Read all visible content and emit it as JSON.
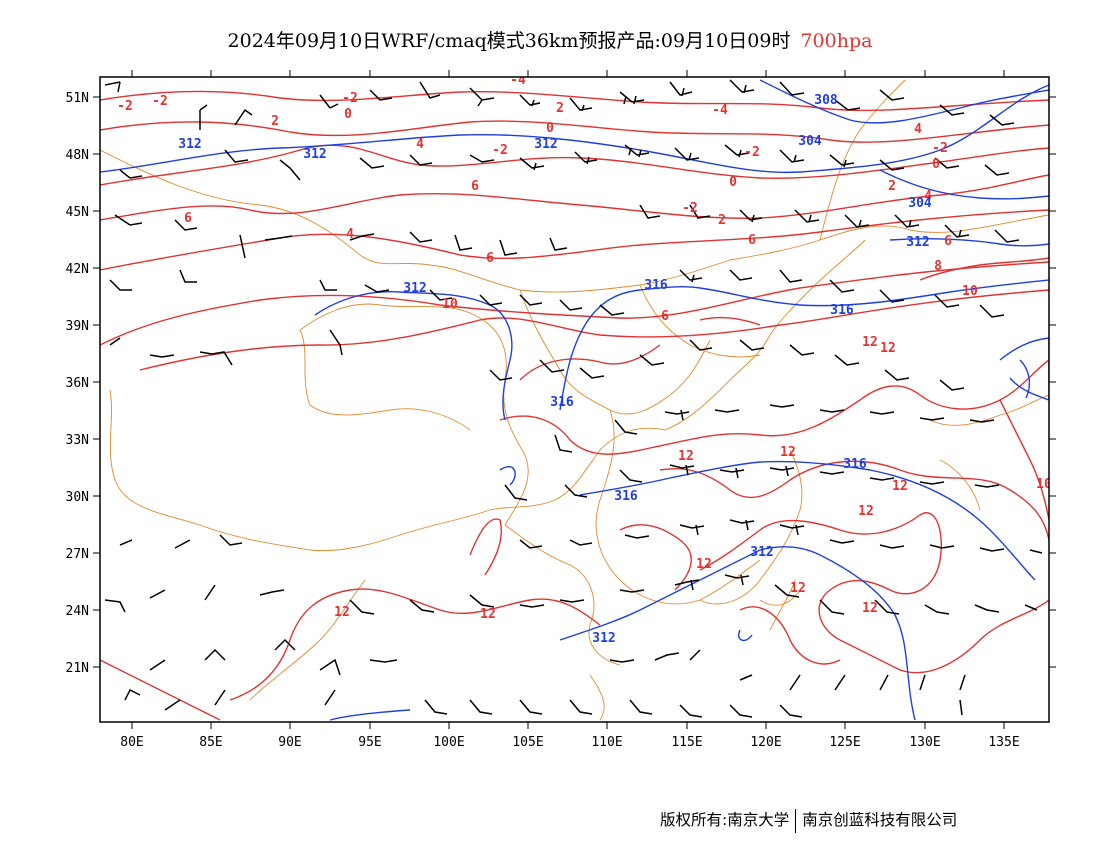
{
  "title": {
    "main": "2024年09月10日WRF/cmaq模式36km预报产品:09月10日09时",
    "level": "700hpa"
  },
  "axes": {
    "lat_labels": [
      "51N",
      "48N",
      "45N",
      "42N",
      "39N",
      "36N",
      "33N",
      "30N",
      "27N",
      "24N",
      "21N"
    ],
    "lon_labels": [
      "80E",
      "85E",
      "90E",
      "95E",
      "100E",
      "105E",
      "110E",
      "115E",
      "120E",
      "125E",
      "130E",
      "135E"
    ]
  },
  "temperature_labels": [
    "-2",
    "-2",
    "-2",
    "0",
    "-4",
    "-4",
    "2",
    "0",
    "2",
    "-2",
    "4",
    "-2",
    "-2",
    "0",
    "4",
    "6",
    "2",
    "0",
    "4",
    "6",
    "-2",
    "2",
    "4",
    "6",
    "6",
    "6",
    "10",
    "6",
    "8",
    "10",
    "12",
    "12",
    "12",
    "12",
    "12",
    "12",
    "12",
    "12",
    "12",
    "12",
    "12",
    "10"
  ],
  "height_labels": [
    "312",
    "312",
    "308",
    "304",
    "312",
    "304",
    "312",
    "312",
    "316",
    "316",
    "316",
    "316",
    "316",
    "312",
    "312"
  ],
  "copyright": {
    "owner_prefix": "版权所有:",
    "owner1": "南京大学",
    "owner2": "南京创蓝科技有限公司"
  },
  "colors": {
    "temperature": "#e23333",
    "height": "#1f3fe0",
    "border": "#e08a2e",
    "wind": "#000000"
  }
}
